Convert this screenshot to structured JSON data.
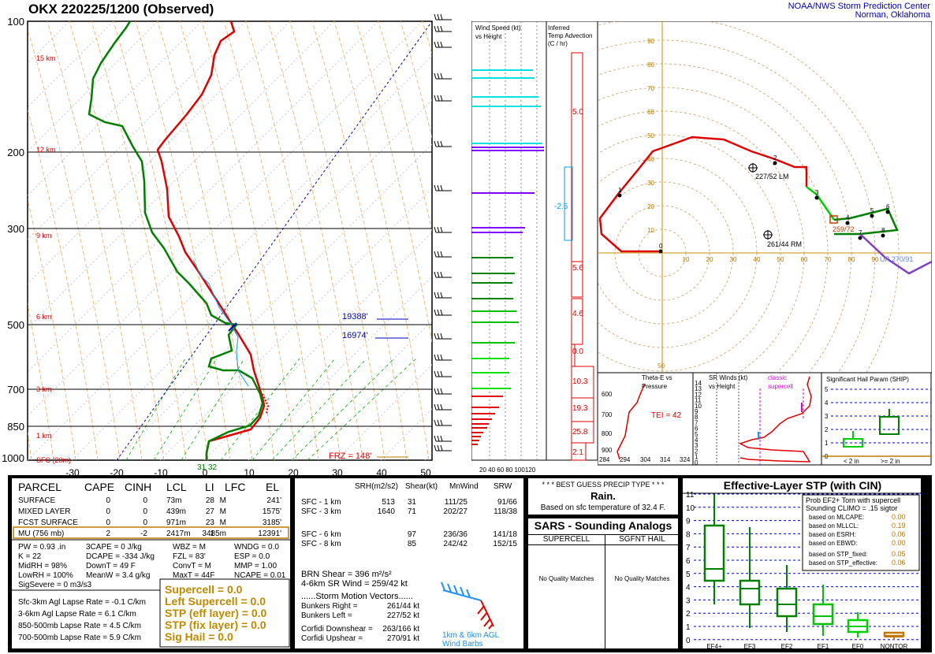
{
  "header": {
    "title": "OKX   220225/1200  (Observed)",
    "org_line1": "NOAA/NWS Storm Prediction Center",
    "org_line2": "Norman, Oklahoma"
  },
  "skewt": {
    "pressure_labels": [
      "100",
      "200",
      "300",
      "500",
      "700",
      "850",
      "1000"
    ],
    "temp_labels": [
      "-30",
      "-20",
      "-10",
      "0",
      "10",
      "20",
      "30",
      "40",
      "50"
    ],
    "height_labels": [
      "15 km",
      "12 km",
      "9 km",
      "6 km",
      "3 km",
      "1 km",
      "SFC (20m)"
    ],
    "level_19388": "19388'",
    "level_16974": "16974'",
    "frz": "FRZ = 148'",
    "sfc_temps": "31  32"
  },
  "wind_panel": {
    "title_line1": "Wind Speed (kt)",
    "title_line2": "vs Height",
    "axis": "20 40 60 80 100120"
  },
  "tadv_panel": {
    "title_line1": "Inferred",
    "title_line2": "Temp Advection",
    "title_line3": "(C / hr)",
    "values": [
      "5.0",
      "-2.5",
      "5.6",
      "4.6",
      "0.0",
      "10.3",
      "19.3",
      "25.8",
      "2.1"
    ]
  },
  "hodo": {
    "ring_labels": [
      "90",
      "80",
      "70",
      "60",
      "50",
      "40",
      "30",
      "20",
      "10"
    ],
    "x_labels": [
      "10",
      "20",
      "30",
      "40",
      "50",
      "60",
      "70",
      "80",
      "90"
    ],
    "lm": "227/52 LM",
    "rm": "261/44 RM",
    "mean": "259/72",
    "up": "UP 270/91",
    "points": [
      "0",
      "1",
      "2",
      "3",
      "4",
      "5",
      "6",
      "7",
      "8"
    ]
  },
  "theta_panel": {
    "title_line1": "Theta-E vs",
    "title_line2": "Pressure",
    "tei": "TEI = 42",
    "p_labels": [
      "600",
      "700",
      "800",
      "900"
    ],
    "x_labels": [
      "284",
      "294",
      "304",
      "314",
      "324"
    ]
  },
  "srwind_panel": {
    "title_line1": "SR Winds (kt)",
    "title_line2": "vs Height",
    "classic_line1": "classic",
    "classic_line2": "supercell",
    "y_labels": [
      "14",
      "13",
      "12",
      "11",
      "10",
      "9",
      "8",
      "7",
      "6",
      "5",
      "4",
      "3",
      "2",
      "1",
      "0"
    ]
  },
  "ship_panel": {
    "title": "Significant Hail Param (SHIP)",
    "y_labels": [
      "5",
      "4",
      "3",
      "2",
      "1",
      "0"
    ],
    "x1": "< 2 in",
    "x2": ">= 2 in"
  },
  "parcel_table": {
    "headers": [
      "PARCEL",
      "CAPE",
      "CINH",
      "LCL",
      "LI",
      "LFC",
      "EL"
    ],
    "rows": [
      [
        "SURFACE",
        "0",
        "0",
        "73m",
        "28",
        "M",
        "241'"
      ],
      [
        "MIXED LAYER",
        "0",
        "0",
        "439m",
        "27",
        "M",
        "1575'"
      ],
      [
        "FCST SURFACE",
        "0",
        "0",
        "971m",
        "23",
        "M",
        "3185'"
      ],
      [
        "MU   (756 mb)",
        "2",
        "-2",
        "2417m",
        "1",
        "3485m",
        "12391'"
      ]
    ],
    "left_col": [
      "PW = 0.93 .in",
      "K = 22",
      "MidRH = 98%",
      "LowRH = 100%",
      "SigSevere = 0 m3/s3"
    ],
    "mid_col": [
      "3CAPE = 0 J/kg",
      "DCAPE = -334 J/kg",
      "DownT = 49 F",
      "MeanW = 3.4 g/kg"
    ],
    "right_a": [
      "WBZ = M",
      "FZL = 83'",
      "ConvT = M",
      "MaxT = 44F"
    ],
    "right_b": [
      "WNDG = 0.0",
      "ESP = 0.0",
      "MMP = 1.00",
      "NCAPE = 0.01"
    ],
    "lapse": [
      "Sfc-3km Agl Lapse Rate =   -0.1 C/km",
      "3-6km Agl Lapse Rate =    6.1 C/km",
      "850-500mb Lapse Rate =    4.5 C/km",
      "700-500mb Lapse Rate =    5.9 C/km"
    ],
    "params": [
      "Supercell = 0.0",
      "Left Supercell = 0.0",
      "STP (eff layer) = 0.0",
      "STP (fix layer) = 0.0",
      "Sig Hail = 0.0"
    ]
  },
  "kinematics": {
    "headers": [
      "SRH(m2/s2)",
      "Shear(kt)",
      "MnWind",
      "SRW"
    ],
    "rows": [
      [
        "SFC - 1 km",
        "513",
        "31",
        "111/25",
        "91/66"
      ],
      [
        "SFC - 3 km",
        "1640",
        "71",
        "202/27",
        "118/38"
      ],
      [
        "SFC - 6 km",
        "",
        "97",
        "236/36",
        "141/18"
      ],
      [
        "SFC - 8 km",
        "",
        "85",
        "242/42",
        "152/15"
      ]
    ],
    "brn": "BRN Shear =  396 m²/s²",
    "sr_wind": "4-6km SR Wind =         259/42 kt",
    "storm_title": "......Storm Motion Vectors......",
    "storm": [
      [
        "Bunkers Right =",
        "261/44 kt"
      ],
      [
        "Bunkers Left =",
        "227/52 kt"
      ],
      [
        "Corfidi Downshear =",
        "263/166 kt"
      ],
      [
        "Corfidi Upshear =",
        "270/91 kt"
      ]
    ],
    "barb_label1": "1km & 6km AGL",
    "barb_label2": "Wind Barbs"
  },
  "precip": {
    "title": "* * * BEST GUESS PRECIP TYPE * * *",
    "type": "Rain.",
    "note": "Based on sfc temperature of 32.4 F."
  },
  "sars": {
    "title": "SARS - Sounding Analogs",
    "col1": "SUPERCELL",
    "col2": "SGFNT HAIL",
    "m1": "No Quality Matches",
    "m2": "No Quality Matches"
  },
  "stp": {
    "title": "Effective-Layer STP (with CIN)",
    "prob_line1": "Prob EF2+ Torn with supercell",
    "prob_line2": "Sounding CLIMO = .15 sigtor",
    "based": [
      [
        "based on MLCAPE:",
        "0.00"
      ],
      [
        "based on MLLCL:",
        "0.19"
      ],
      [
        "based on ESRH:",
        "0.06"
      ],
      [
        "based on EBWD:",
        "0.00"
      ],
      [
        "based on STP_fixed:",
        "0.05"
      ],
      [
        "based on STP_effective:",
        "0.06"
      ]
    ],
    "y_labels": [
      "11",
      "10",
      "9",
      "8",
      "7",
      "6",
      "5",
      "4",
      "3",
      "2",
      "1",
      "0"
    ],
    "x_labels": [
      "EF4+",
      "EF3",
      "EF2",
      "EF1",
      "EF0",
      "NONTOR"
    ]
  }
}
